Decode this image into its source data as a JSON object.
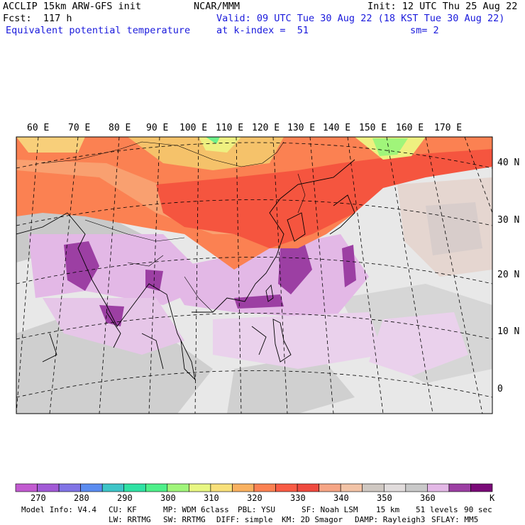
{
  "header": {
    "model": "ACCLIP 15km ARW-GFS init",
    "org": "NCAR/MMM",
    "init": "Init: 12 UTC Thu 25 Aug 22",
    "fcst": "Fcst:  117 h",
    "valid": "Valid: 09 UTC Tue 30 Aug 22 (18 KST Tue 30 Aug 22)",
    "field": "Equivalent potential temperature",
    "level": "at k-index =  51",
    "smooth": "sm= 2"
  },
  "map": {
    "lon_labels": [
      "60 E",
      "70 E",
      "80 E",
      "90 E",
      "100 E",
      "110 E",
      "120 E",
      "130 E",
      "140 E",
      "150 E",
      "160 E",
      "170 E"
    ],
    "lat_labels": [
      "40 N",
      "30 N",
      "20 N",
      "10 N",
      "0"
    ]
  },
  "colorbar": {
    "colors": [
      "#c25bd0",
      "#a25ad6",
      "#8174e6",
      "#5b8cf0",
      "#3ec5c8",
      "#2fe2a4",
      "#4ef08a",
      "#a0f57a",
      "#e8f782",
      "#f8e07a",
      "#f9b160",
      "#fb8152",
      "#f95c45",
      "#ef4a3f",
      "#f6a585",
      "#f2c3a6",
      "#cfc8c2",
      "#e1dcdc",
      "#c9c9c9",
      "#e3b8e6",
      "#9c3fa3",
      "#7a0a78"
    ],
    "labels": [
      "270",
      "280",
      "290",
      "300",
      "310",
      "320",
      "330",
      "340",
      "350",
      "360"
    ],
    "unit": "K"
  },
  "footer": {
    "line1": [
      "Model Info: V4.4",
      "CU: KF",
      "MP: WDM 6class",
      "PBL: YSU",
      "SF: Noah LSM",
      "15 km",
      "51 levels",
      "90 sec"
    ],
    "line2": [
      "LW: RRTMG",
      "SW: RRTMG",
      "DIFF: simple",
      "KM: 2D Smagor",
      "DAMP: Rayleigh3",
      "SFLAY: MM5"
    ]
  }
}
